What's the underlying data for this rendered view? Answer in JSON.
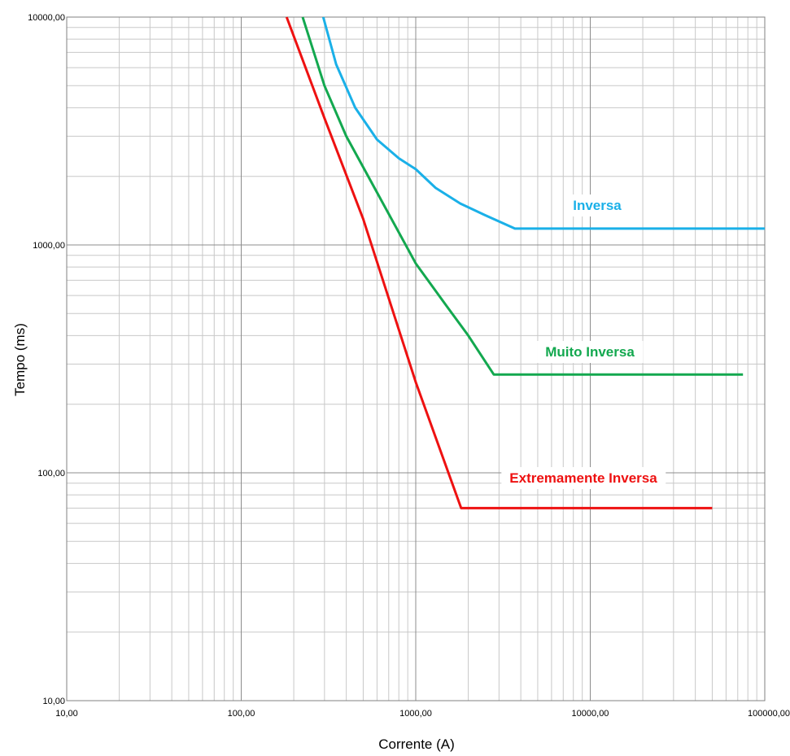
{
  "chart_data": {
    "type": "line",
    "xlabel": "Corrente (A)",
    "ylabel": "Tempo (ms)",
    "xscale": "log",
    "yscale": "log",
    "xlim": [
      10,
      100000
    ],
    "ylim": [
      10,
      10000
    ],
    "grid": true,
    "x_ticks": [
      10,
      100,
      1000,
      10000,
      100000
    ],
    "x_tick_labels": [
      "10,00",
      "100,00",
      "1000,00",
      "10000,00",
      "100000,00"
    ],
    "y_ticks": [
      10,
      100,
      1000,
      10000
    ],
    "y_tick_labels": [
      "10,00",
      "100,00",
      "1000,00",
      "10000,00"
    ],
    "series": [
      {
        "name": "Inversa",
        "color": "#1ab0e8",
        "x": [
          295,
          350,
          450,
          600,
          800,
          1000,
          1300,
          1800,
          2500,
          3700,
          100000
        ],
        "y": [
          10000,
          6200,
          4000,
          2900,
          2400,
          2150,
          1780,
          1520,
          1350,
          1180,
          1180
        ]
      },
      {
        "name": "Muito  Inversa",
        "color": "#13a84f",
        "x": [
          225,
          300,
          400,
          600,
          1000,
          1500,
          2000,
          2800,
          75000
        ],
        "y": [
          10000,
          5000,
          3000,
          1700,
          830,
          540,
          400,
          270,
          270
        ]
      },
      {
        "name": "Extremamente Inversa",
        "color": "#ee1111",
        "x": [
          182,
          300,
          500,
          1000,
          1820,
          50000
        ],
        "y": [
          10000,
          3600,
          1300,
          250,
          70,
          70
        ]
      }
    ]
  }
}
